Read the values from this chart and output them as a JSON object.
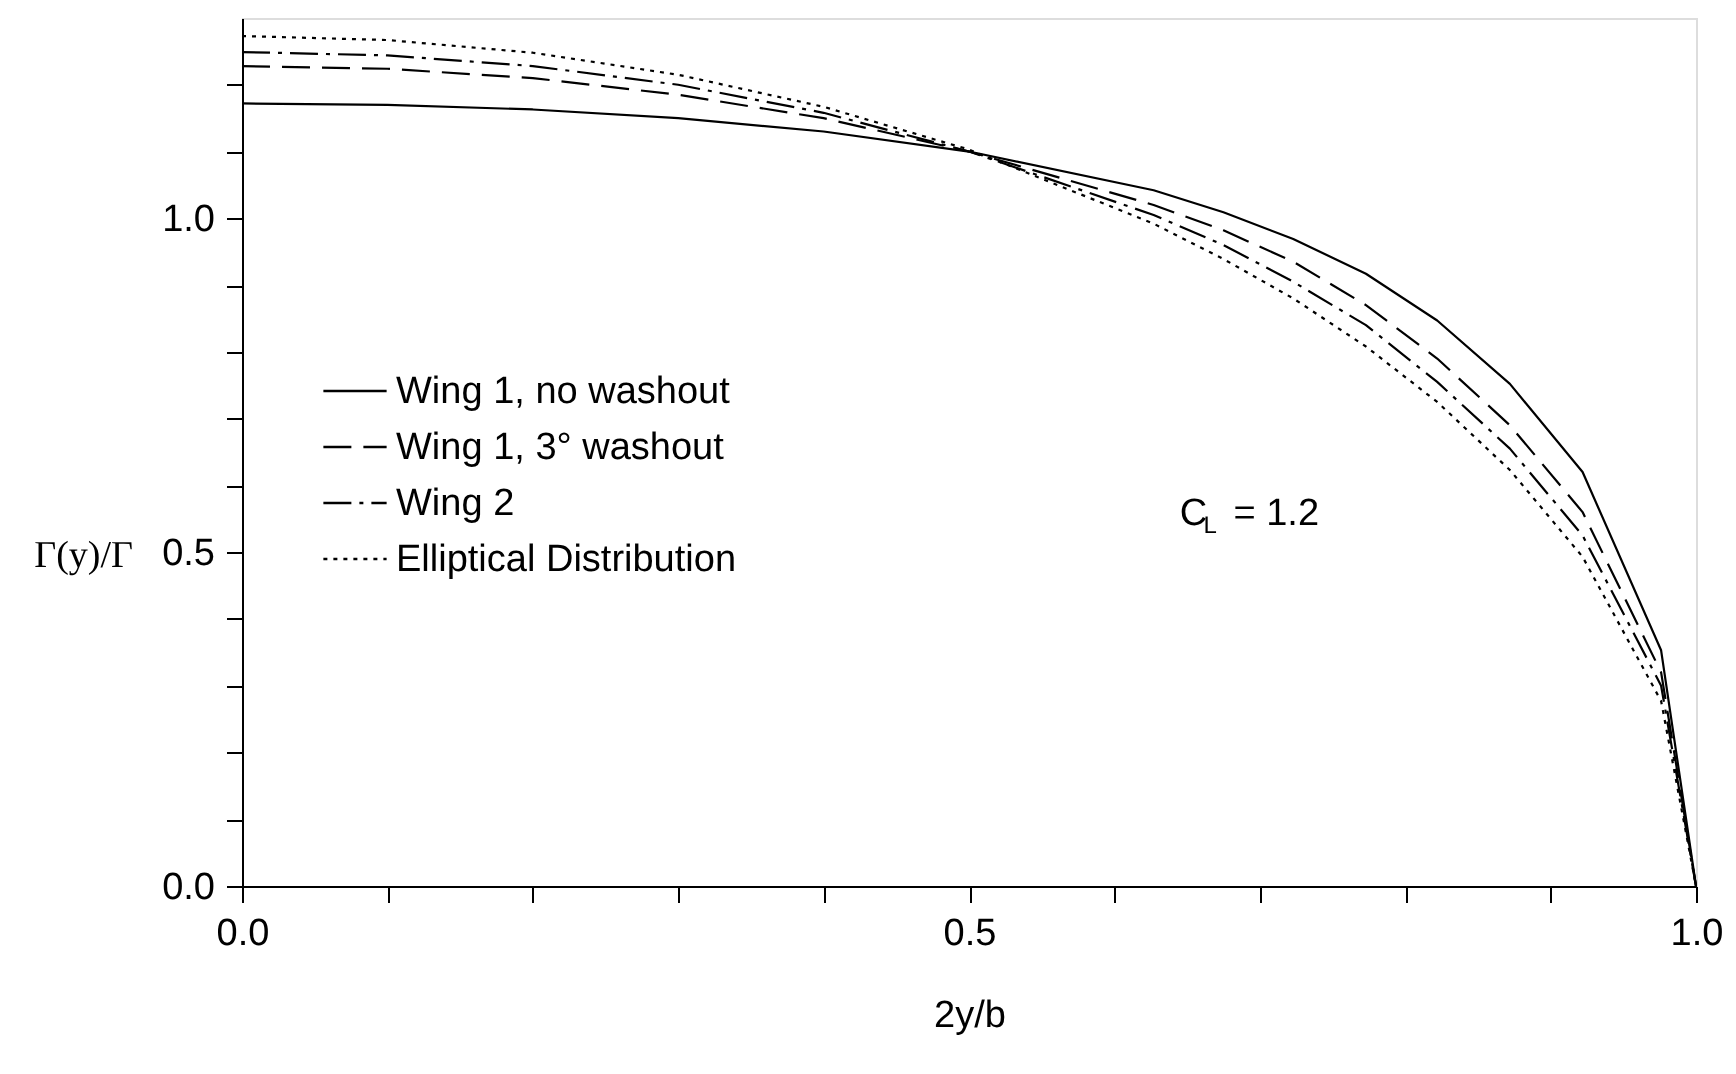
{
  "chart_data": {
    "type": "line",
    "xlabel": "2y/b",
    "ylabel": "Γ(y)/Γ",
    "x": [
      0,
      0.1,
      0.2,
      0.3,
      0.4,
      0.5,
      0.627,
      0.675,
      0.723,
      0.773,
      0.822,
      0.872,
      0.922,
      0.976,
      1.0
    ],
    "series": [
      {
        "name": "Wing 1, no washout",
        "color": "#000000",
        "line_style": "solid",
        "values": [
          1.172,
          1.17,
          1.163,
          1.15,
          1.13,
          1.1,
          1.042,
          1.009,
          0.969,
          0.917,
          0.847,
          0.752,
          0.62,
          0.353,
          0.0
        ]
      },
      {
        "name": "Wing 1, 3° washout",
        "color": "#000000",
        "line_style": "dashed",
        "values": [
          1.228,
          1.224,
          1.21,
          1.185,
          1.15,
          1.1,
          1.02,
          0.982,
          0.935,
          0.87,
          0.79,
          0.69,
          0.56,
          0.32,
          0.0
        ]
      },
      {
        "name": "Wing 2",
        "color": "#000000",
        "line_style": "dashdot",
        "values": [
          1.249,
          1.244,
          1.228,
          1.2,
          1.158,
          1.1,
          1.005,
          0.96,
          0.905,
          0.84,
          0.755,
          0.655,
          0.525,
          0.3,
          0.0
        ]
      },
      {
        "name": "Elliptical Distribution",
        "color": "#000000",
        "line_style": "dotted",
        "values": [
          1.273,
          1.267,
          1.248,
          1.215,
          1.167,
          1.103,
          0.992,
          0.939,
          0.88,
          0.808,
          0.725,
          0.623,
          0.493,
          0.277,
          0.0
        ]
      }
    ],
    "xlim": [
      0,
      1.0
    ],
    "ylim": [
      0,
      1.3
    ],
    "xticks": [
      {
        "value": 0,
        "label": "0.0"
      },
      {
        "value": 0.1,
        "label": null
      },
      {
        "value": 0.2,
        "label": null
      },
      {
        "value": 0.3,
        "label": null
      },
      {
        "value": 0.4,
        "label": null
      },
      {
        "value": 0.5,
        "label": "0.5"
      },
      {
        "value": 0.6,
        "label": null
      },
      {
        "value": 0.7,
        "label": null
      },
      {
        "value": 0.8,
        "label": null
      },
      {
        "value": 0.9,
        "label": null
      },
      {
        "value": 1.0,
        "label": "1.0"
      }
    ],
    "yticks": [
      {
        "value": 0,
        "label": "0.0"
      },
      {
        "value": 0.1,
        "label": null
      },
      {
        "value": 0.2,
        "label": null
      },
      {
        "value": 0.3,
        "label": null
      },
      {
        "value": 0.4,
        "label": null
      },
      {
        "value": 0.5,
        "label": "0.5"
      },
      {
        "value": 0.6,
        "label": null
      },
      {
        "value": 0.7,
        "label": null
      },
      {
        "value": 0.8,
        "label": null
      },
      {
        "value": 0.9,
        "label": null
      },
      {
        "value": 1.0,
        "label": "1.0"
      },
      {
        "value": 1.1,
        "label": null
      },
      {
        "value": 1.2,
        "label": null
      }
    ],
    "annotations": [
      "C$_{L}$ = 1.2"
    ],
    "grid": false,
    "legend": "left",
    "marker": "none"
  }
}
